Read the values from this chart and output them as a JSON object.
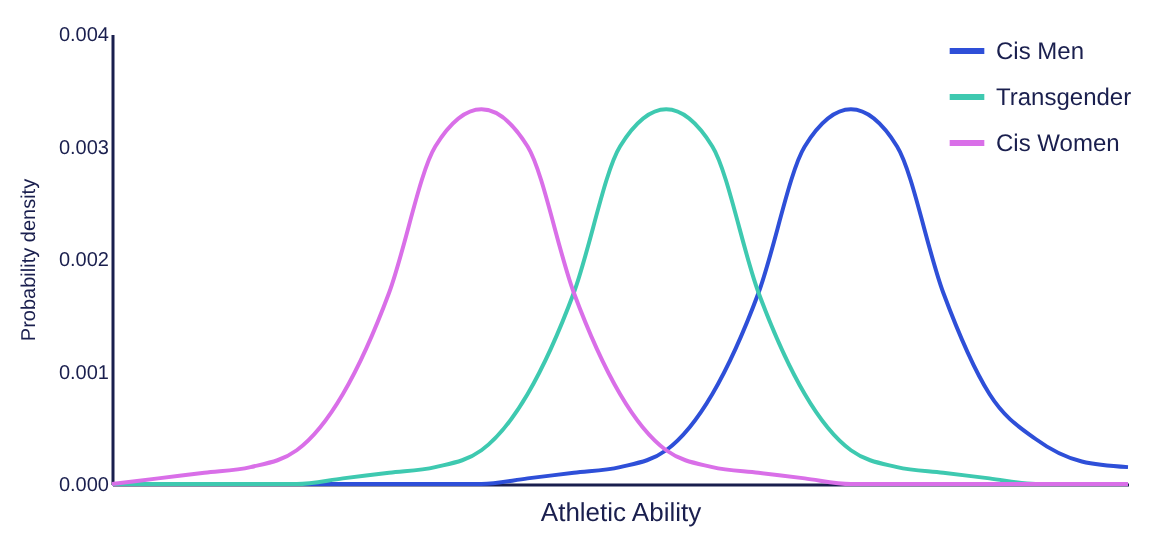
{
  "chart_data": {
    "type": "line",
    "xlabel": "Athletic Ability",
    "ylabel": "Probability density",
    "categories": [
      null,
      null,
      null,
      null,
      null,
      null,
      null,
      null,
      null,
      null,
      null,
      null,
      null,
      null,
      null,
      null,
      null,
      null,
      null,
      null,
      null,
      null,
      null
    ],
    "series": [
      {
        "name": "Cis Men",
        "color": "#2e4fd8",
        "values": [
          0,
          0,
          0,
          0,
          0,
          0,
          0,
          0,
          0,
          5e-05,
          0.0001,
          0.00015,
          0.0003,
          0.0008,
          0.0017,
          0.003,
          0.00333,
          0.003,
          0.0017,
          0.0008,
          0.0004,
          0.0002,
          0.00015
        ]
      },
      {
        "name": "Transgender",
        "color": "#3ec9b0",
        "values": [
          0,
          0,
          0,
          0,
          0,
          5e-05,
          0.0001,
          0.00015,
          0.0003,
          0.0008,
          0.0017,
          0.003,
          0.00333,
          0.003,
          0.0017,
          0.0008,
          0.0003,
          0.00015,
          0.0001,
          5e-05,
          0,
          0,
          0
        ]
      },
      {
        "name": "Cis Women",
        "color": "#d96fe8",
        "values": [
          0,
          5e-05,
          0.0001,
          0.00015,
          0.0003,
          0.0008,
          0.0017,
          0.003,
          0.00333,
          0.003,
          0.0017,
          0.0008,
          0.0003,
          0.00015,
          0.0001,
          5e-05,
          0,
          0,
          0,
          0,
          0,
          0,
          0
        ]
      }
    ],
    "ylim": [
      0,
      0.004
    ],
    "yticks": [
      {
        "value": 0,
        "label": "0.000"
      },
      {
        "value": 0.001,
        "label": "0.001"
      },
      {
        "value": 0.002,
        "label": "0.002"
      },
      {
        "value": 0.003,
        "label": "0.003"
      },
      {
        "value": 0.004,
        "label": "0.004"
      }
    ],
    "grid": false,
    "legend": "top right",
    "marker": "none",
    "line_style": "solid"
  }
}
